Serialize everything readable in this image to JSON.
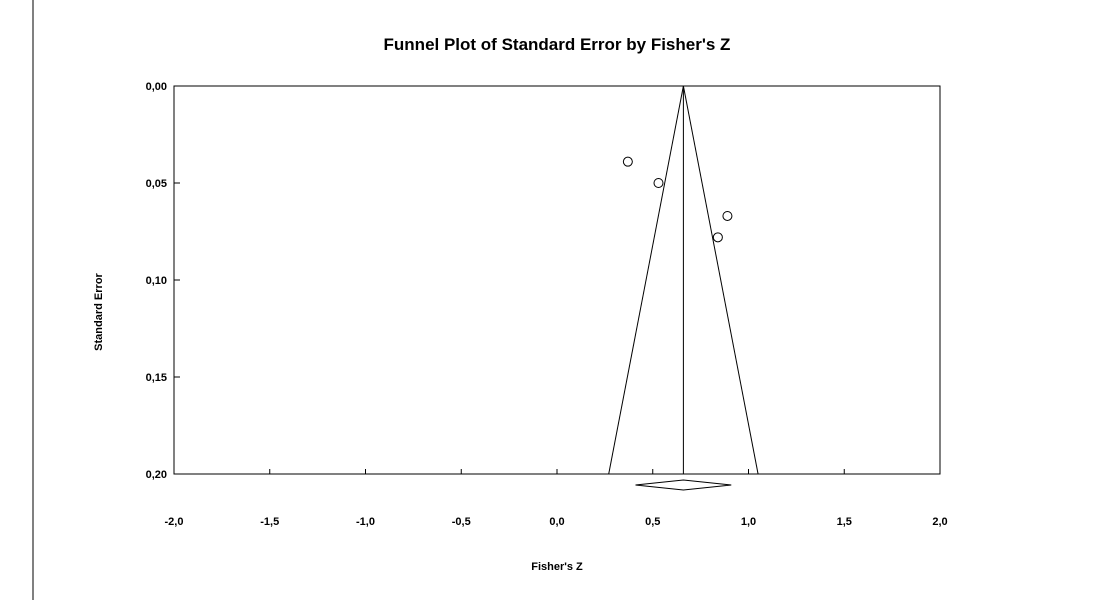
{
  "chart_data": {
    "type": "scatter",
    "title": "Funnel Plot of Standard Error by Fisher's Z",
    "xlabel": "Fisher's Z",
    "ylabel": "Standard Error",
    "xlim": [
      -2.0,
      2.0
    ],
    "ylim": [
      0.0,
      0.2
    ],
    "y_inverted": true,
    "x_ticks": [
      "-2,0",
      "-1,5",
      "-1,0",
      "-0,5",
      "0,0",
      "0,5",
      "1,0",
      "1,5",
      "2,0"
    ],
    "y_ticks": [
      "0,00",
      "0,05",
      "0,10",
      "0,15",
      "0,20"
    ],
    "x_tick_values": [
      -2.0,
      -1.5,
      -1.0,
      -0.5,
      0.0,
      0.5,
      1.0,
      1.5,
      2.0
    ],
    "y_tick_values": [
      0.0,
      0.05,
      0.1,
      0.15,
      0.2
    ],
    "points": [
      {
        "x": 0.37,
        "y": 0.039
      },
      {
        "x": 0.53,
        "y": 0.05
      },
      {
        "x": 0.89,
        "y": 0.067
      },
      {
        "x": 0.84,
        "y": 0.078
      }
    ],
    "summary_effect": 0.66,
    "funnel_bounds_at_max_se": [
      0.27,
      1.05
    ],
    "summary_diamond": {
      "center": 0.66,
      "lower": 0.41,
      "upper": 0.91
    },
    "marker": "open-circle",
    "grid": false,
    "legend": "none"
  }
}
